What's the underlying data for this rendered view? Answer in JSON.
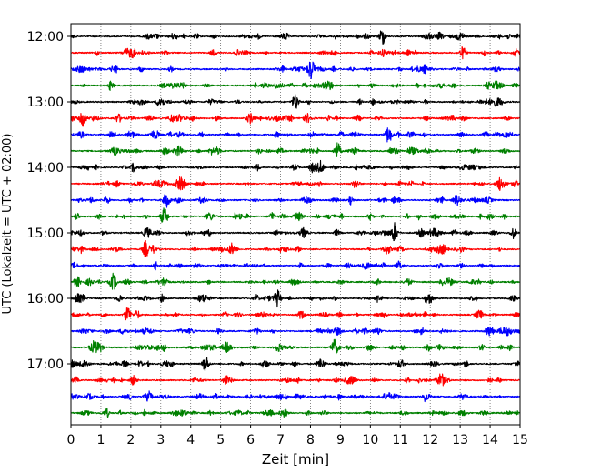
{
  "chart_data": {
    "type": "line",
    "title": "",
    "xlabel": "Zeit  [min]",
    "ylabel": "UTC (Lokalzeit = UTC + 02:00)",
    "xlim": [
      0,
      15
    ],
    "x_ticks": [
      0,
      1,
      2,
      3,
      4,
      5,
      6,
      7,
      8,
      9,
      10,
      11,
      12,
      13,
      14,
      15
    ],
    "x_tick_labels": [
      "0",
      "1",
      "2",
      "3",
      "4",
      "5",
      "6",
      "7",
      "8",
      "9",
      "10",
      "11",
      "12",
      "13",
      "14",
      "15"
    ],
    "y_tick_labels": [
      "12:00",
      "13:00",
      "14:00",
      "15:00",
      "16:00",
      "17:00"
    ],
    "y_tick_rows": [
      0,
      4,
      8,
      12,
      16,
      20
    ],
    "grid": "vertical dotted",
    "trace_colors": [
      "#000000",
      "#ff0000",
      "#0000ff",
      "#008000"
    ],
    "traces": [
      {
        "start": "12:00",
        "color": "#000000",
        "events_min": [
          10.4
        ]
      },
      {
        "start": "12:15",
        "color": "#ff0000",
        "events_min": []
      },
      {
        "start": "12:30",
        "color": "#0000ff",
        "events_min": [
          8.0
        ]
      },
      {
        "start": "12:45",
        "color": "#008000",
        "events_min": []
      },
      {
        "start": "13:00",
        "color": "#000000",
        "events_min": [
          7.5
        ]
      },
      {
        "start": "13:15",
        "color": "#ff0000",
        "events_min": [
          0.4
        ]
      },
      {
        "start": "13:30",
        "color": "#0000ff",
        "events_min": [
          10.6
        ]
      },
      {
        "start": "13:45",
        "color": "#008000",
        "events_min": [
          8.9
        ]
      },
      {
        "start": "14:00",
        "color": "#000000",
        "events_min": []
      },
      {
        "start": "14:15",
        "color": "#ff0000",
        "events_min": []
      },
      {
        "start": "14:30",
        "color": "#0000ff",
        "events_min": [
          3.2
        ]
      },
      {
        "start": "14:45",
        "color": "#008000",
        "events_min": [
          3.1
        ]
      },
      {
        "start": "15:00",
        "color": "#000000",
        "events_min": [
          10.8
        ]
      },
      {
        "start": "15:15",
        "color": "#ff0000",
        "events_min": [
          2.5
        ]
      },
      {
        "start": "15:30",
        "color": "#0000ff",
        "events_min": []
      },
      {
        "start": "15:45",
        "color": "#008000",
        "events_min": []
      },
      {
        "start": "16:00",
        "color": "#000000",
        "events_min": [
          6.9
        ]
      },
      {
        "start": "16:15",
        "color": "#ff0000",
        "events_min": [
          1.9
        ]
      },
      {
        "start": "16:30",
        "color": "#0000ff",
        "events_min": []
      },
      {
        "start": "16:45",
        "color": "#008000",
        "events_min": [
          8.8
        ]
      },
      {
        "start": "17:00",
        "color": "#000000",
        "events_min": [
          4.5
        ]
      },
      {
        "start": "17:15",
        "color": "#ff0000",
        "events_min": []
      },
      {
        "start": "17:30",
        "color": "#0000ff",
        "events_min": [
          2.6
        ]
      },
      {
        "start": "17:45",
        "color": "#008000",
        "events_min": []
      }
    ]
  }
}
